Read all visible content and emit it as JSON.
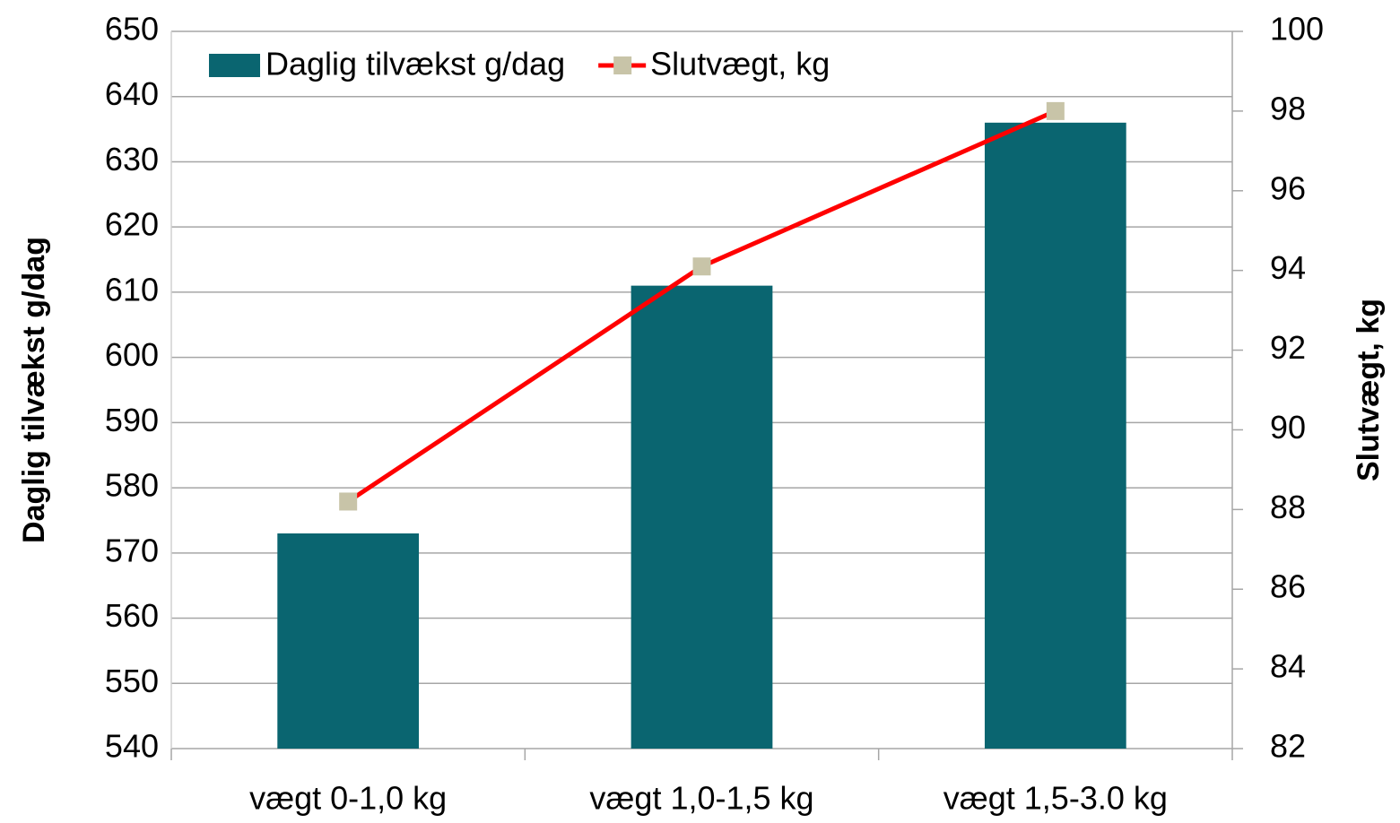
{
  "chart_data": {
    "type": "bar",
    "categories": [
      "vægt 0-1,0 kg",
      "vægt 1,0-1,5 kg",
      "vægt 1,5-3.0 kg"
    ],
    "series": [
      {
        "name": "Daglig tilvækst g/dag",
        "type": "bar",
        "color": "#0a6570",
        "values": [
          573,
          611,
          636
        ]
      },
      {
        "name": "Slutvægt, kg",
        "type": "line",
        "axis": "y2",
        "color": "#ff0000",
        "marker_color": "#c8c4a8",
        "values": [
          88.2,
          94.1,
          98.0
        ]
      }
    ],
    "ylabel": "Daglig tilvækst g/dag",
    "y2label": "Slutvægt, kg",
    "ylim": [
      540,
      650
    ],
    "yticks": [
      540,
      550,
      560,
      570,
      580,
      590,
      600,
      610,
      620,
      630,
      640,
      650
    ],
    "y2lim": [
      82,
      100
    ],
    "y2ticks": [
      82,
      84,
      86,
      88,
      90,
      92,
      94,
      96,
      98,
      100
    ],
    "grid": true,
    "legend": "top"
  }
}
